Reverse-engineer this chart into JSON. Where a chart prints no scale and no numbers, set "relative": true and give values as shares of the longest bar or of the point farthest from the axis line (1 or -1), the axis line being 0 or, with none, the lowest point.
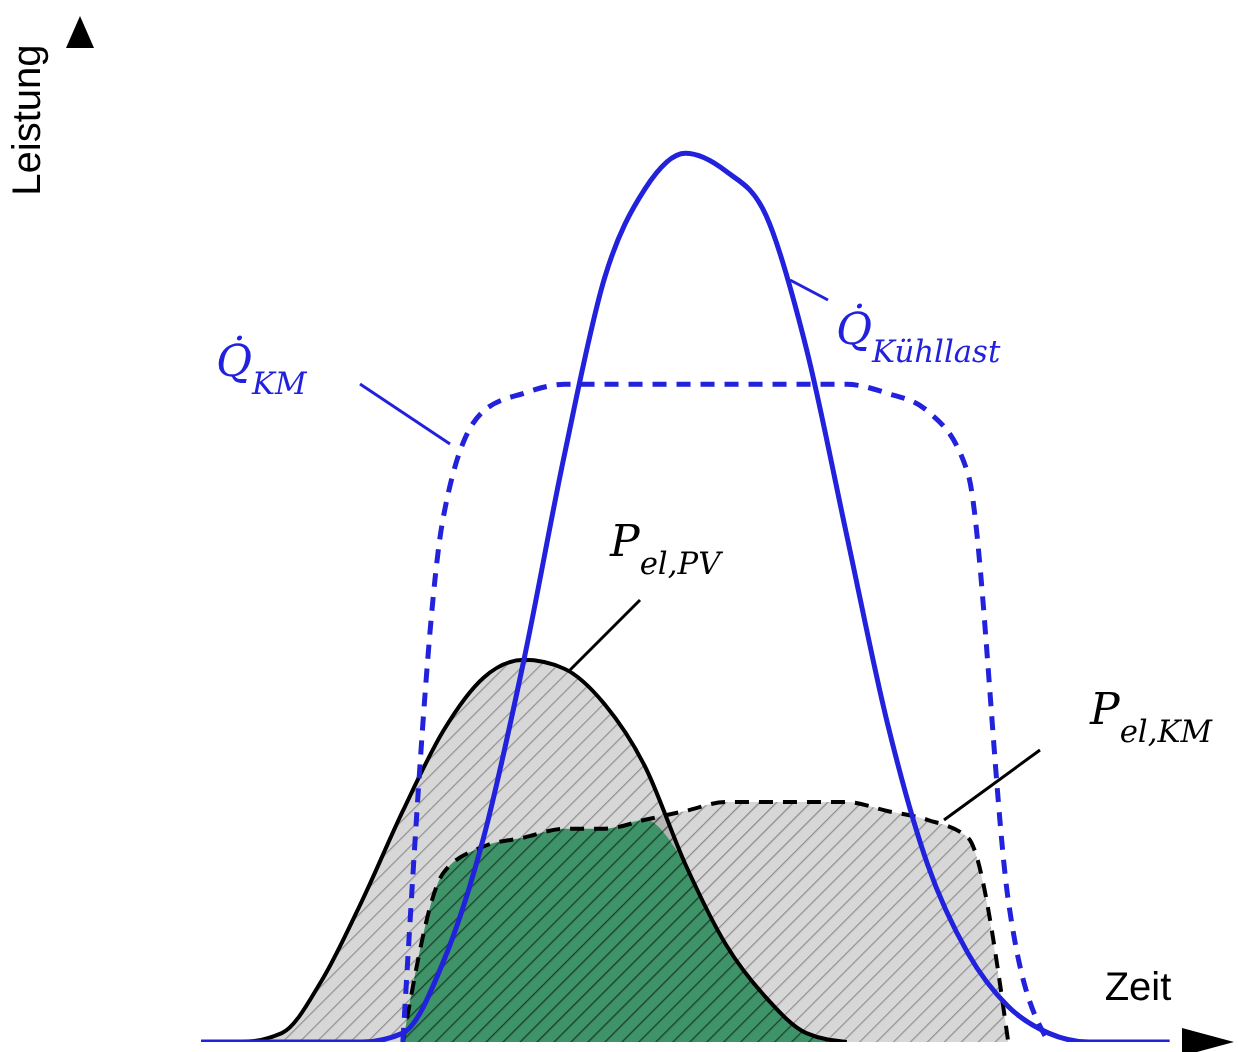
{
  "chart_data": {
    "type": "line",
    "relative": true,
    "xlabel": "Zeit",
    "ylabel": "Leistung",
    "categories": [
      null,
      null,
      null,
      null,
      null,
      null,
      null,
      null,
      null,
      null,
      null,
      null,
      null,
      null,
      null,
      null,
      null,
      null,
      null,
      null,
      null,
      null,
      null,
      null,
      null,
      null,
      null,
      null,
      null
    ],
    "series": [
      {
        "name": "P$_{el,PV}$",
        "type": "area",
        "color": "#000000",
        "values": [
          null,
          null,
          null,
          0,
          0,
          0.01,
          0.07,
          0.16,
          0.26,
          0.35,
          0.41,
          0.43,
          0.42,
          0.38,
          0.31,
          0.2,
          0.11,
          0.05,
          0.01,
          0,
          null,
          null,
          null,
          null,
          null,
          null,
          null,
          null,
          null
        ]
      },
      {
        "name": "P$_{el,KM}$",
        "type": "area",
        "color": "#000000",
        "line_style": "dashed",
        "values": [
          null,
          null,
          null,
          null,
          null,
          null,
          null,
          null,
          0,
          0.19,
          0.22,
          0.23,
          0.24,
          0.24,
          0.25,
          0.26,
          0.27,
          0.27,
          0.27,
          0.27,
          0.26,
          0.25,
          0.23,
          0,
          null,
          null,
          null,
          null,
          null
        ]
      },
      {
        "type": "area",
        "color": "#1fbf6f",
        "values": [
          null,
          null,
          null,
          null,
          null,
          null,
          null,
          null,
          0,
          0.19,
          0.22,
          0.23,
          0.24,
          0.24,
          0.25,
          0.2,
          0.11,
          0.05,
          0.01,
          0,
          null,
          null,
          null,
          null,
          null,
          null,
          null,
          null,
          null
        ]
      },
      {
        "name": "Q̇$_{KM}$",
        "color": "#2222dd",
        "line_style": "dashed",
        "values": [
          null,
          null,
          null,
          null,
          null,
          null,
          null,
          null,
          0,
          0.59,
          0.71,
          0.73,
          0.74,
          0.74,
          0.74,
          0.74,
          0.74,
          0.74,
          0.74,
          0.74,
          0.73,
          0.71,
          0.64,
          0.16,
          0,
          null,
          null,
          null,
          null
        ]
      },
      {
        "name": "Q̇$_{Kühllast}$",
        "color": "#2222dd",
        "values": [
          null,
          null,
          null,
          0,
          0,
          0,
          0,
          0,
          0.01,
          0.09,
          0.23,
          0.43,
          0.66,
          0.86,
          0.96,
          1,
          0.98,
          0.93,
          0.78,
          0.57,
          0.36,
          0.2,
          0.1,
          0.04,
          0.01,
          0,
          0,
          0,
          null
        ]
      }
    ]
  }
}
